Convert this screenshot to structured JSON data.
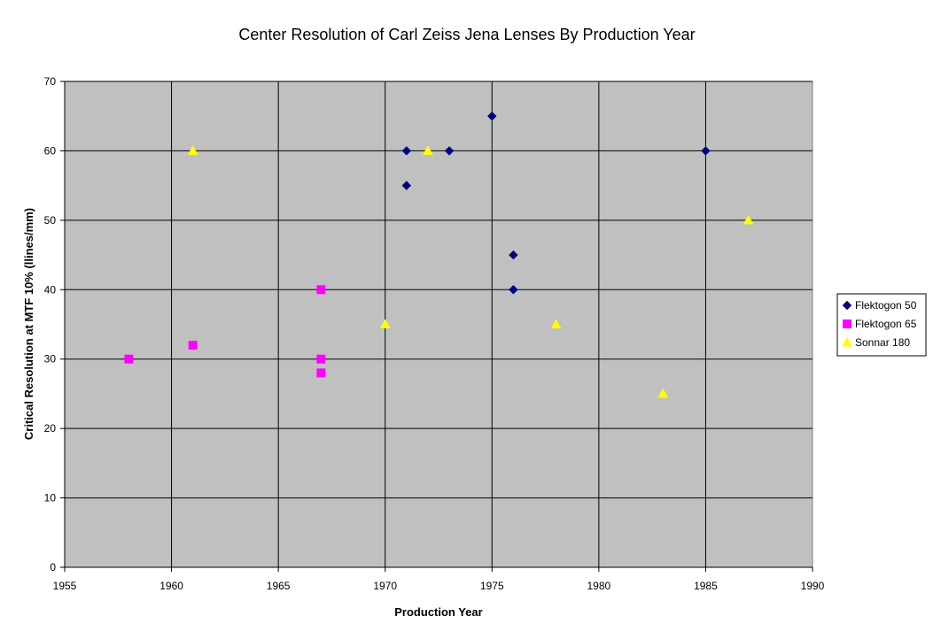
{
  "chart_data": {
    "type": "scatter",
    "title": "Center Resolution of Carl Zeiss Jena Lenses By Production Year",
    "xlabel": "Production Year",
    "ylabel": "Critical Resolution at MTF 10% (llines/mm)",
    "xlim": [
      1955,
      1990
    ],
    "ylim": [
      0,
      70
    ],
    "x_ticks": [
      1955,
      1960,
      1965,
      1970,
      1975,
      1980,
      1985,
      1990
    ],
    "y_ticks": [
      0,
      10,
      20,
      30,
      40,
      50,
      60,
      70
    ],
    "grid": true,
    "plot_background": "#c0c0c0",
    "legend_position": "right",
    "series": [
      {
        "name": "Flektogon 50",
        "marker": "diamond",
        "color": "#000080",
        "points": [
          {
            "x": 1971,
            "y": 60
          },
          {
            "x": 1971,
            "y": 55
          },
          {
            "x": 1973,
            "y": 60
          },
          {
            "x": 1975,
            "y": 65
          },
          {
            "x": 1976,
            "y": 45
          },
          {
            "x": 1976,
            "y": 40
          },
          {
            "x": 1985,
            "y": 60
          }
        ]
      },
      {
        "name": "Flektogon 65",
        "marker": "square",
        "color": "#ff00ff",
        "points": [
          {
            "x": 1958,
            "y": 30
          },
          {
            "x": 1961,
            "y": 32
          },
          {
            "x": 1967,
            "y": 40
          },
          {
            "x": 1967,
            "y": 30
          },
          {
            "x": 1967,
            "y": 28
          }
        ]
      },
      {
        "name": "Sonnar 180",
        "marker": "triangle",
        "color": "#ffff00",
        "points": [
          {
            "x": 1961,
            "y": 60
          },
          {
            "x": 1970,
            "y": 35
          },
          {
            "x": 1972,
            "y": 60
          },
          {
            "x": 1978,
            "y": 35
          },
          {
            "x": 1983,
            "y": 25
          },
          {
            "x": 1987,
            "y": 50
          }
        ]
      }
    ]
  }
}
